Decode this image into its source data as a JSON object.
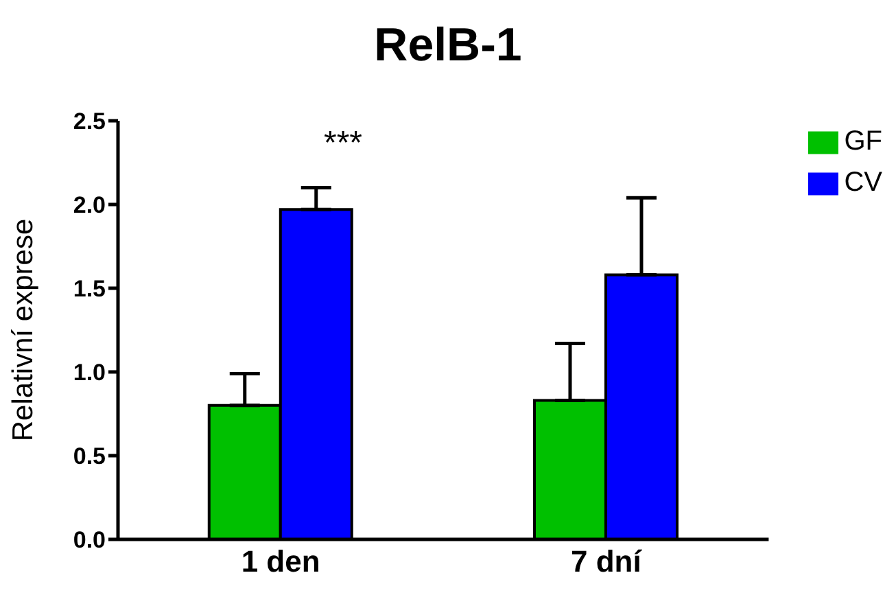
{
  "chart_data": {
    "type": "bar",
    "title": "RelB-1",
    "ylabel": "Relativní exprese",
    "categories": [
      "1 den",
      "7 dní"
    ],
    "series": [
      {
        "name": "GF",
        "color": "#00c000",
        "values": [
          0.8,
          0.83
        ],
        "errors": [
          [
            0.8,
            0.99
          ],
          [
            0.83,
            1.17
          ]
        ]
      },
      {
        "name": "CV",
        "color": "#0000ff",
        "values": [
          1.97,
          1.58
        ],
        "errors": [
          [
            1.97,
            2.1
          ],
          [
            1.58,
            2.04
          ]
        ]
      }
    ],
    "ylim": [
      0,
      2.5
    ],
    "yticks": [
      {
        "value": 0,
        "label": "0.0"
      },
      {
        "value": 0.5,
        "label": "0.5"
      },
      {
        "value": 1,
        "label": "1.0"
      },
      {
        "value": 1.5,
        "label": "1.5"
      },
      {
        "value": 2,
        "label": "2.0"
      },
      {
        "value": 2.5,
        "label": "2.5"
      }
    ],
    "grid": false,
    "legend": "top right",
    "annotations": [
      "***"
    ]
  }
}
